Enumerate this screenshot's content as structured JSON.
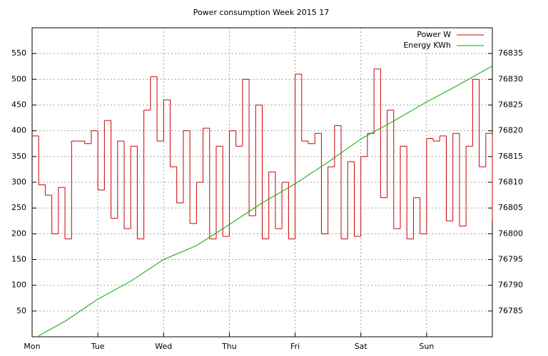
{
  "chart_data": {
    "type": "step-line",
    "title": "Power consumption Week 2015 17",
    "xlim": [
      0,
      7
    ],
    "xticks": [
      {
        "value": 0,
        "label": "Mon"
      },
      {
        "value": 1,
        "label": "Tue"
      },
      {
        "value": 2,
        "label": "Wed"
      },
      {
        "value": 3,
        "label": "Thu"
      },
      {
        "value": 4,
        "label": "Fri"
      },
      {
        "value": 5,
        "label": "Sat"
      },
      {
        "value": 6,
        "label": "Sun"
      }
    ],
    "ylim": [
      0,
      600
    ],
    "yticks": [
      50,
      100,
      150,
      200,
      250,
      300,
      350,
      400,
      450,
      500,
      550
    ],
    "y2lim": [
      76780,
      76840
    ],
    "y2ticks": [
      76785,
      76790,
      76795,
      76800,
      76805,
      76810,
      76815,
      76820,
      76825,
      76830,
      76835
    ],
    "grid": true,
    "legend": "top-right",
    "series": [
      {
        "name": "Power W",
        "color": "#cc0000",
        "style": "steps",
        "x": [
          0,
          0.1,
          0.2,
          0.3,
          0.4,
          0.5,
          0.6,
          0.7,
          0.8,
          0.9,
          1,
          1.1,
          1.2,
          1.3,
          1.4,
          1.5,
          1.6,
          1.7,
          1.8,
          1.9,
          2,
          2.1,
          2.2,
          2.3,
          2.4,
          2.5,
          2.6,
          2.7,
          2.8,
          2.9,
          3,
          3.1,
          3.2,
          3.3,
          3.4,
          3.5,
          3.6,
          3.7,
          3.8,
          3.9,
          4,
          4.1,
          4.2,
          4.3,
          4.4,
          4.5,
          4.6,
          4.7,
          4.8,
          4.9,
          5,
          5.1,
          5.2,
          5.3,
          5.4,
          5.5,
          5.6,
          5.7,
          5.8,
          5.9,
          6,
          6.1,
          6.2,
          6.3,
          6.4,
          6.5,
          6.6,
          6.7,
          6.8,
          6.9,
          7
        ],
        "values": [
          390,
          295,
          275,
          200,
          290,
          190,
          380,
          380,
          375,
          400,
          285,
          420,
          230,
          380,
          210,
          370,
          190,
          440,
          505,
          380,
          460,
          330,
          260,
          400,
          220,
          300,
          405,
          190,
          370,
          195,
          400,
          370,
          500,
          235,
          450,
          190,
          320,
          210,
          300,
          190,
          510,
          380,
          375,
          395,
          200,
          330,
          410,
          190,
          340,
          195,
          350,
          395,
          520,
          270,
          440,
          210,
          370,
          190,
          270,
          200,
          385,
          380,
          390,
          225,
          395,
          215,
          370,
          500,
          330,
          395,
          225
        ]
      },
      {
        "name": "Energy KWh",
        "color": "#00aa00",
        "style": "line",
        "axis": "y2",
        "x": [
          0.1,
          0.5,
          1,
          1.5,
          2,
          2.5,
          3,
          3.5,
          4,
          4.5,
          5,
          5.5,
          6,
          6.5,
          7
        ],
        "values": [
          76780.2,
          76783,
          76787.3,
          76790.8,
          76795,
          76797.7,
          76801.8,
          76806,
          76809.7,
          76813.9,
          76818.4,
          76821.9,
          76825.6,
          76829,
          76832.6
        ]
      }
    ]
  }
}
